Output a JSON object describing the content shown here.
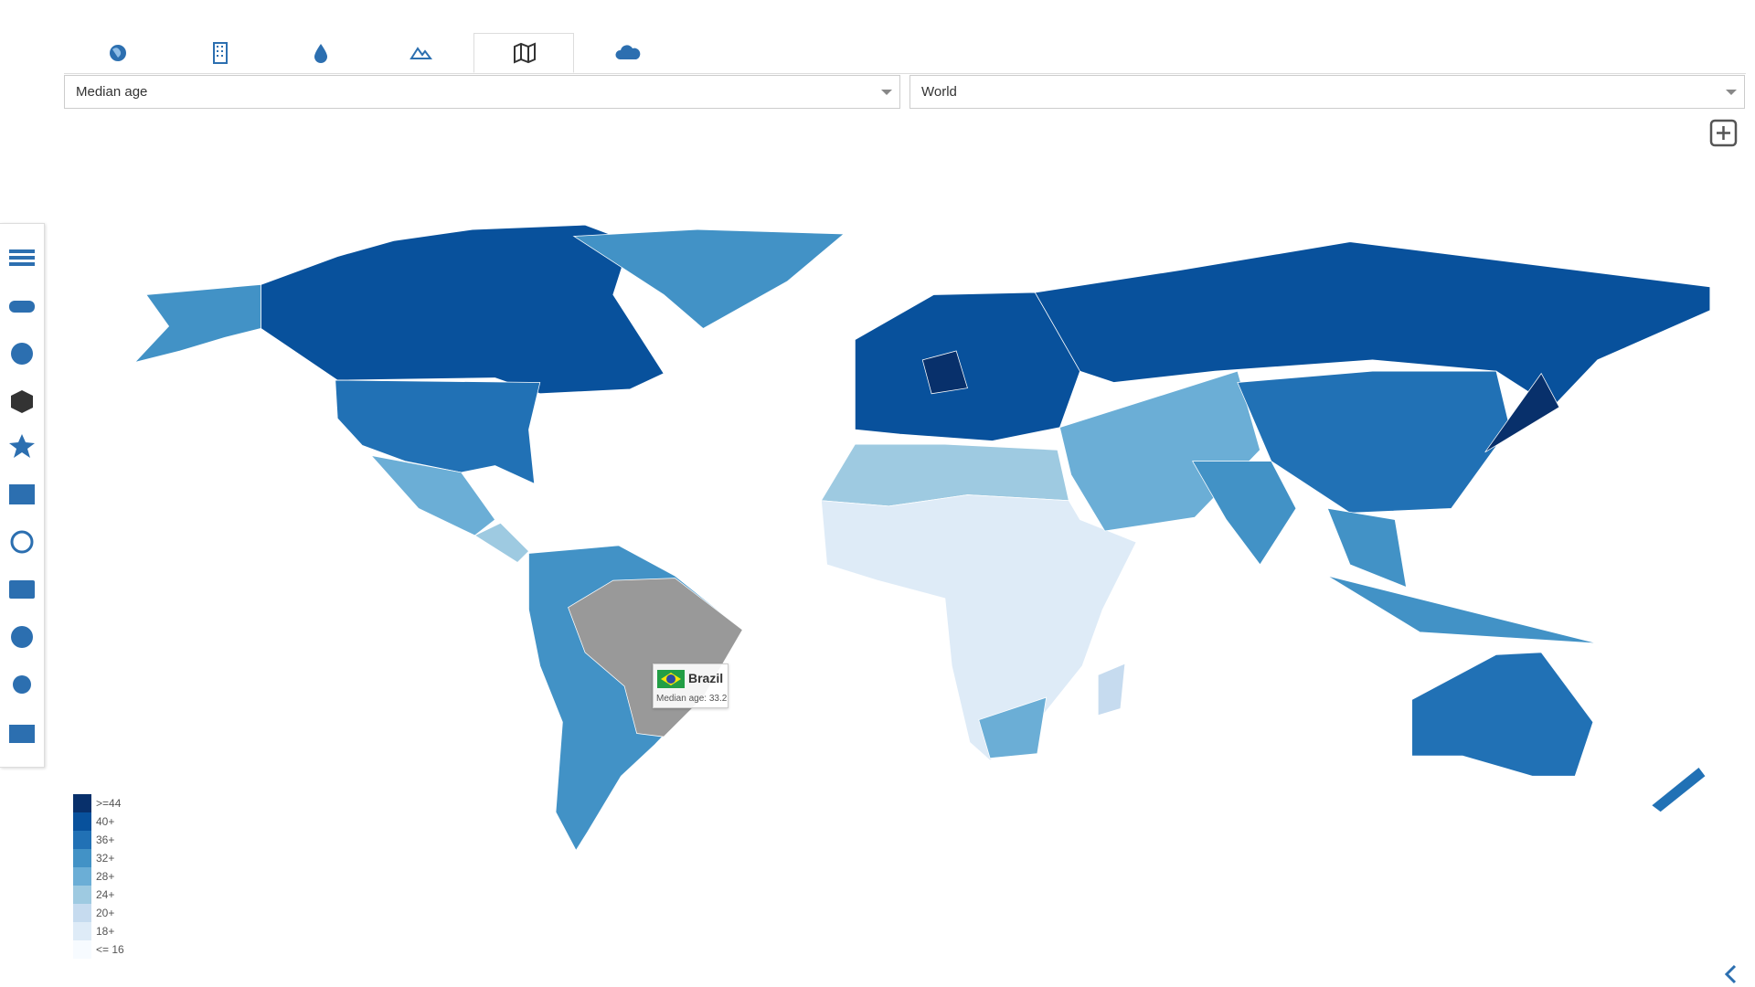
{
  "selectors": {
    "indicator": "Median age",
    "region": "World"
  },
  "tooltip": {
    "country": "Brazil",
    "text": "Median age: 33.2"
  },
  "legend": [
    {
      "label": ">=44",
      "color": "#08306b"
    },
    {
      "label": "40+",
      "color": "#08519c"
    },
    {
      "label": "36+",
      "color": "#2171b5"
    },
    {
      "label": "32+",
      "color": "#4292c6"
    },
    {
      "label": "28+",
      "color": "#6baed6"
    },
    {
      "label": "24+",
      "color": "#9ecae1"
    },
    {
      "label": "20+",
      "color": "#c6dbef"
    },
    {
      "label": "18+",
      "color": "#deebf7"
    },
    {
      "label": "<= 16",
      "color": "#f7fbff"
    }
  ]
}
